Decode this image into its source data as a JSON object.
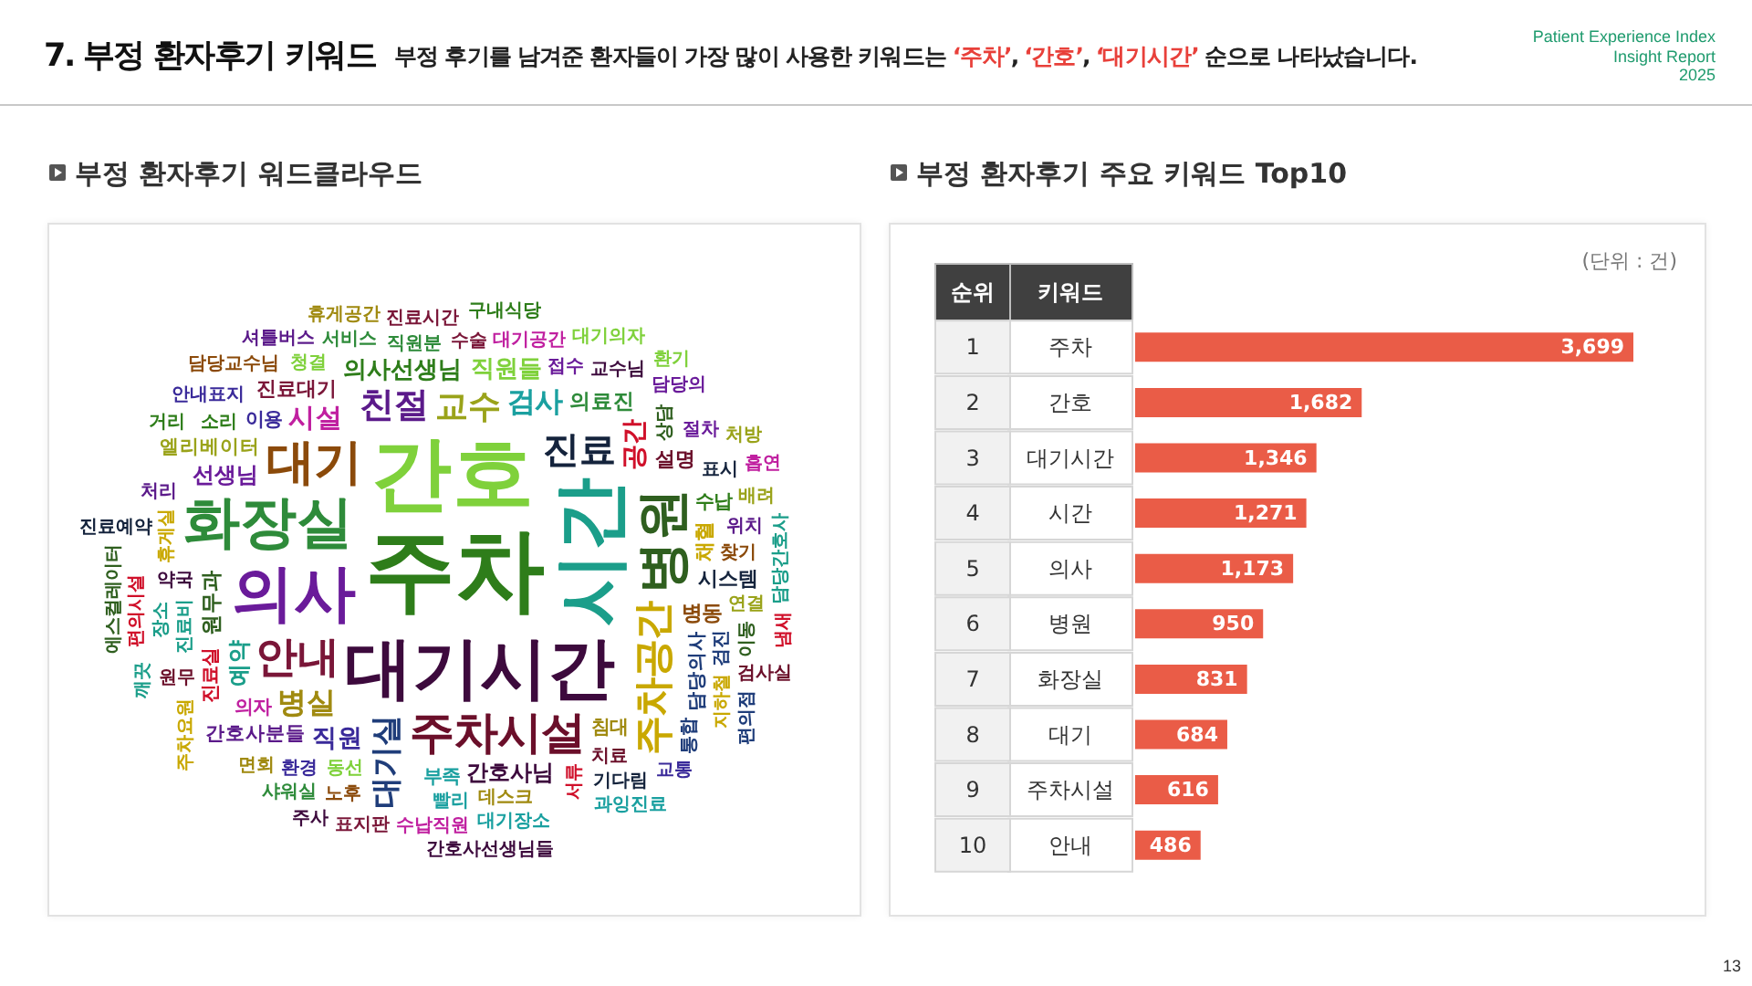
{
  "chart_data": [
    {
      "type": "other",
      "title": "부정 환자후기 워드클라우드",
      "categories": [
        "주차",
        "간호",
        "시간",
        "대기시간",
        "의사",
        "화장실",
        "병원",
        "대기",
        "주차시설",
        "안내",
        "주차공간",
        "진료",
        "친절",
        "교수",
        "대기실",
        "병실",
        "검사",
        "시설",
        "공간",
        "직원",
        "의사선생님",
        "직원들",
        "예약",
        "간호사님",
        "선생님",
        "의료진",
        "원무과",
        "병동",
        "설명",
        "진료대기",
        "채혈",
        "시스템",
        "간호사분들",
        "엘리베이터",
        "담당의사",
        "침대",
        "부족",
        "의자",
        "진료실",
        "이용",
        "수납",
        "동선",
        "진료비",
        "약국",
        "접수",
        "직원분",
        "상담",
        "찾기",
        "치료",
        "수술",
        "휴게실",
        "표시",
        "위치",
        "연결",
        "검진",
        "데스크",
        "빨리",
        "대기공간",
        "서류",
        "환경",
        "소리",
        "청결",
        "장소",
        "교수님",
        "절차",
        "서비스",
        "이동",
        "노후",
        "원무",
        "진료시간",
        "지하철",
        "기다림",
        "처리",
        "배려",
        "통합",
        "면회",
        "대기장소",
        "수납직원",
        "편의시설",
        "안내표지",
        "구내식당",
        "대기의자",
        "담당간호사",
        "간호사선생님들",
        "담당의",
        "샤워실",
        "에스컬레이터",
        "담당교수님",
        "검사실",
        "표지판",
        "주차요원",
        "진료예약",
        "셔틀버스",
        "처방",
        "편의점",
        "휴게공간",
        "과잉진료",
        "흡연",
        "냄새",
        "교통",
        "거리",
        "환기",
        "깨끗",
        "주사"
      ],
      "annotations": [
        "7. 부정 환자후기 키워드",
        "부정 후기를 남겨준 환자들이 가장 많이 사용한 키워드는 ‘주차’, ‘간호’, ‘대기시간’ 순으로 나타났습니다.",
        "Patient Experience Index",
        "Insight Report",
        "2025"
      ]
    },
    {
      "type": "bar",
      "orientation": "horizontal",
      "title": "부정 환자후기 주요 키워드 Top10",
      "ylabel": "키워드",
      "y2label": "순위",
      "categories": [
        "주차",
        "간호",
        "대기시간",
        "시간",
        "의사",
        "병원",
        "화장실",
        "대기",
        "주차시설",
        "안내"
      ],
      "y2_categories": [
        "1",
        "2",
        "3",
        "4",
        "5",
        "6",
        "7",
        "8",
        "9",
        "10"
      ],
      "values": [
        3699,
        1682,
        1346,
        1271,
        1173,
        950,
        831,
        684,
        616,
        486
      ],
      "value_labels": [
        "3,699",
        "1,682",
        "1,346",
        "1,271",
        "1,173",
        "950",
        "831",
        "684",
        "616",
        "486"
      ],
      "color": "#ea5c47",
      "tick_labels": "y",
      "annotations": [
        "(단위 : 건)",
        "13"
      ]
    }
  ]
}
